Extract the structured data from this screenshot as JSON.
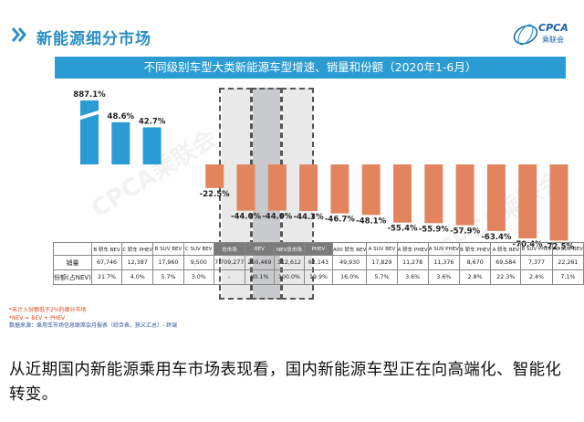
{
  "header": {
    "title": "新能源细分市场",
    "logo_text": "CPCA",
    "logo_sub": "乘联会"
  },
  "subtitle": "不同级别车型大类新能源车型增速、销量和份额（2020年1-6月）",
  "watermark": "CPCA乘联会",
  "colors": {
    "positive": "#2a9bd4",
    "negative": "#e2855f",
    "accent": "#2b8fc4",
    "highlight_header": "#7b7b7b"
  },
  "chart_data": {
    "type": "bar",
    "title": "不同级别车型大类新能源车型增速、销量和份额（2020年1-6月）",
    "categories": [
      "B 轿车 BEV",
      "C 轿车 PHEV",
      "B SUV BEV",
      "C SUV BEV",
      "总市场",
      "BEV",
      "NEV总市场",
      "PHEV",
      "A00 轿车 BEV",
      "A SUV BEV",
      "A 轿车 PHEV",
      "A SUV PHEV",
      "B 轿车 PHEV",
      "A 轿车 BEV",
      "B SUV PHEV",
      "A0 SUV BEV"
    ],
    "series": [
      {
        "values": [
          887.1,
          48.6,
          42.7,
          null,
          -22.5,
          -44.0,
          -44.0,
          -44.3,
          -46.7,
          -48.1,
          -55.4,
          -55.9,
          -57.9,
          -63.4,
          -70.4,
          -72.5
        ]
      }
    ],
    "value_labels": [
      "887.1%",
      "48.6%",
      "42.7%",
      "",
      "-22.5%",
      "-44.0%",
      "-44.0%",
      "-44.3%",
      "-46.7%",
      "-48.1%",
      "-55.4%",
      "-55.9%",
      "-57.9%",
      "-63.4%",
      "-70.4%",
      "-72.5%"
    ],
    "highlight": [
      "BEV",
      "NEV总市场",
      "PHEV"
    ],
    "axis_break": true,
    "units": "%"
  },
  "table": {
    "row_labels": [
      "销量",
      "份额(占NEV)"
    ],
    "sales": [
      "67,746",
      "12,387",
      "17,960",
      "9,500",
      "7,709,277",
      "250,469",
      "312,612",
      "62,143",
      "49,930",
      "17,829",
      "11,278",
      "11,376",
      "8,670",
      "69,584",
      "7,377",
      "22,261"
    ],
    "share": [
      "21.7%",
      "4.0%",
      "5.7%",
      "3.0%",
      "-",
      "80.1%",
      "100.0%",
      "19.9%",
      "16.0%",
      "5.7%",
      "3.6%",
      "3.6%",
      "2.8%",
      "22.3%",
      "2.4%",
      "7.1%"
    ]
  },
  "notes": {
    "line1": "*未计入份额低于2%的细分市场",
    "line2": "*NEV = BEV + PHEV",
    "line3": "数据来源：乘用车市场信息联席会月报表（综合表，狭义汇总）- 终端"
  },
  "caption": "从近期国内新能源乘用车市场表现看，国内新能源车型正在向高端化、智能化转变。"
}
